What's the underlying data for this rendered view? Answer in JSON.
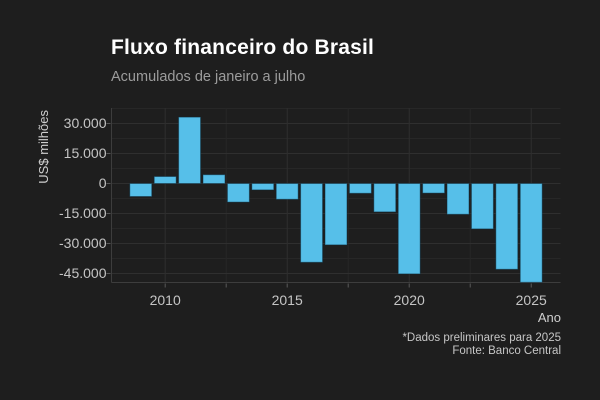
{
  "header": {
    "title": "Fluxo financeiro do Brasil",
    "subtitle": "Acumulados de janeiro a julho"
  },
  "caption": {
    "line1": "*Dados preliminares para 2025",
    "line2": "Fonte: Banco Central"
  },
  "chart_data": {
    "type": "bar",
    "title": "Fluxo financeiro do Brasil",
    "subtitle": "Acumulados de janeiro a julho",
    "xlabel": "Ano",
    "ylabel": "US$ milhões",
    "caption": [
      "*Dados preliminares para 2025",
      "Fonte: Banco Central"
    ],
    "categories": [
      2009,
      2010,
      2011,
      2012,
      2013,
      2014,
      2015,
      2016,
      2017,
      2018,
      2019,
      2020,
      2021,
      2022,
      2023,
      2024,
      2025
    ],
    "values": [
      -6500,
      3500,
      33200,
      4400,
      -9300,
      -3200,
      -7900,
      -39400,
      -30700,
      -4900,
      -14200,
      -45200,
      -4800,
      -15400,
      -22700,
      -42900,
      -49400
    ],
    "unit": "US$ milhões",
    "x_ticks": [
      2010,
      2015,
      2020,
      2025
    ],
    "x_tick_labels": [
      "2010",
      "2015",
      "2020",
      "2025"
    ],
    "y_ticks": [
      30000,
      15000,
      0,
      -15000,
      -30000,
      -45000
    ],
    "y_tick_labels": [
      "30.000",
      "15.000",
      "0",
      "-15.000",
      "-30.000",
      "-45.000"
    ],
    "ylim": [
      -49500,
      37750
    ],
    "xlim": [
      2007.8,
      2026.2
    ],
    "grid": "major and minor, horizontal and vertical, dark theme",
    "legend": "none",
    "bar_width_years": 0.9
  },
  "colors": {
    "background": "#1e1e1e",
    "bar": "#56bfe9",
    "bar_border": "rgba(8,40,58,0.45)",
    "title": "#ffffff",
    "subtitle": "#9c9c9c",
    "axis_text": "#c5c5c5",
    "axis_title": "#cfcfcf",
    "caption": "#c6c6c6",
    "grid_major": "#2f2f2f",
    "grid_minor": "#272727",
    "tick_mark": "#5a5a5a",
    "axis_line": "#3d3d3d"
  }
}
